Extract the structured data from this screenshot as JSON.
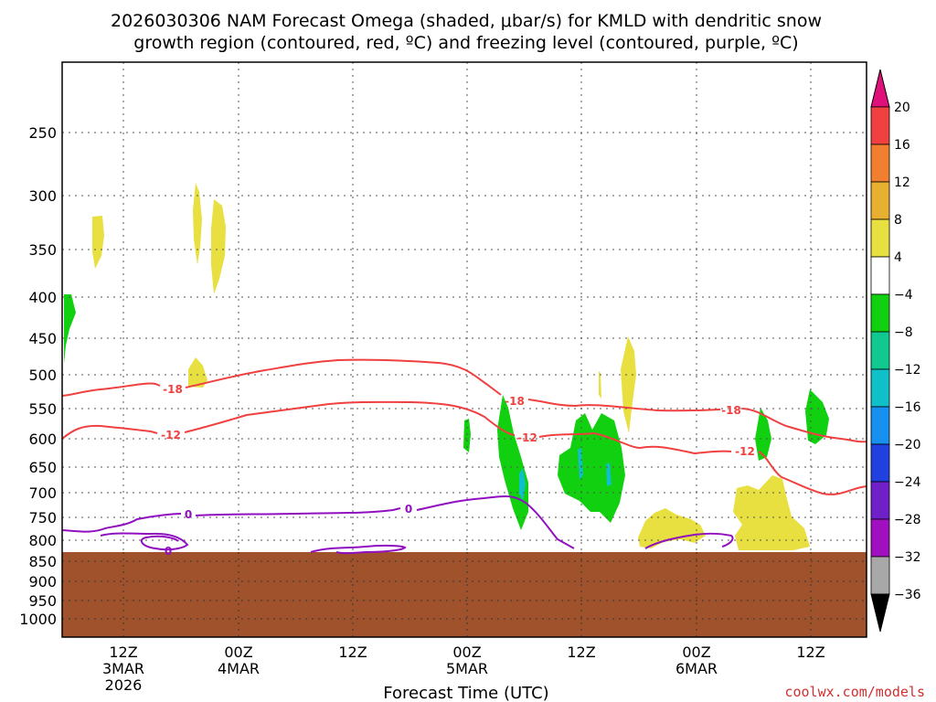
{
  "chart_data": {
    "type": "heatmap",
    "title_lines": [
      "2026030306 NAM Forecast Omega (shaded, μbar/s) for KMLD with dendritic snow",
      "growth region (contoured, red, ºC) and freezing level (contoured, purple, ºC)"
    ],
    "xlabel": "Forecast Time (UTC)",
    "credit": "coolwx.com/models",
    "y_ticks": [
      "250",
      "300",
      "350",
      "400",
      "450",
      "500",
      "550",
      "600",
      "650",
      "700",
      "750",
      "800",
      "850",
      "900",
      "950",
      "1000"
    ],
    "x_ticks": [
      {
        "hour": 12,
        "lines": [
          "12Z",
          "3MAR",
          "2026"
        ]
      },
      {
        "hour": 24,
        "lines": [
          "00Z",
          "4MAR"
        ]
      },
      {
        "hour": 36,
        "lines": [
          "12Z"
        ]
      },
      {
        "hour": 48,
        "lines": [
          "00Z",
          "5MAR"
        ]
      },
      {
        "hour": 60,
        "lines": [
          "12Z"
        ]
      },
      {
        "hour": 72,
        "lines": [
          "00Z",
          "6MAR"
        ]
      },
      {
        "hour": 84,
        "lines": [
          "12Z"
        ]
      }
    ],
    "x_range_hours": [
      6,
      90
    ],
    "colorbar": {
      "tick_labels": [
        "20",
        "16",
        "12",
        "8",
        "4",
        "−4",
        "−8",
        "−12",
        "−16",
        "−20",
        "−24",
        "−28",
        "−32",
        "−36"
      ],
      "bands": [
        {
          "from": 16,
          "to": 20,
          "color": "#f04040"
        },
        {
          "from": 12,
          "to": 16,
          "color": "#f08030"
        },
        {
          "from": 8,
          "to": 12,
          "color": "#e8b030"
        },
        {
          "from": 4,
          "to": 8,
          "color": "#e8e040"
        },
        {
          "from": -4,
          "to": 4,
          "color": "#ffffff"
        },
        {
          "from": -8,
          "to": -4,
          "color": "#10d010"
        },
        {
          "from": -12,
          "to": -8,
          "color": "#10c890"
        },
        {
          "from": -16,
          "to": -12,
          "color": "#10c0c8"
        },
        {
          "from": -20,
          "to": -16,
          "color": "#1890f0"
        },
        {
          "from": -24,
          "to": -20,
          "color": "#2040e0"
        },
        {
          "from": -28,
          "to": -24,
          "color": "#7020c8"
        },
        {
          "from": -32,
          "to": -28,
          "color": "#a010c0"
        },
        {
          "from": -36,
          "to": -32,
          "color": "#a8a8a8"
        }
      ],
      "top_cap_color": "#e0107a",
      "bottom_cap_color": "#000000"
    },
    "contours": [
      {
        "name": "dgz-minus18",
        "label": "-18",
        "color": "#f04040"
      },
      {
        "name": "dgz-minus12",
        "label": "-12",
        "color": "#f04040"
      },
      {
        "name": "freezing-level",
        "label": "0",
        "color": "#9010c0"
      }
    ],
    "ground_color": "#a0522d"
  }
}
